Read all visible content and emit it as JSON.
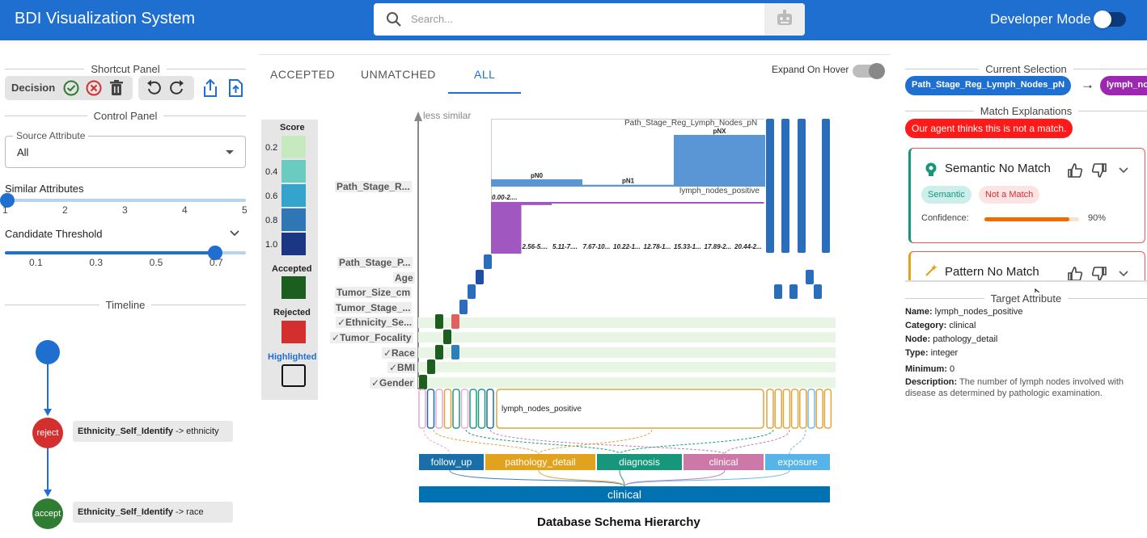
{
  "header": {
    "app_title": "BDI Visualization System",
    "search_placeholder": "Search...",
    "developer_mode_label": "Developer Mode"
  },
  "left": {
    "shortcut_panel": "Shortcut Panel",
    "decision_label": "Decision",
    "control_panel": "Control Panel",
    "source_attribute": {
      "label": "Source Attribute",
      "value": "All"
    },
    "similar_attributes": {
      "label": "Similar Attributes",
      "ticks": [
        "1",
        "2",
        "3",
        "4",
        "5"
      ],
      "value": 1
    },
    "candidate_threshold": {
      "label": "Candidate Threshold",
      "ticks": [
        "0.1",
        "0.3",
        "0.5",
        "0.7"
      ],
      "value": 0.7
    },
    "timeline_label": "Timeline",
    "timeline": [
      {
        "state": "reject",
        "text_bold": "Ethnicity_Self_Identify",
        "text_rest": " -> ethnicity"
      },
      {
        "state": "accept",
        "text_bold": "Ethnicity_Self_Identify",
        "text_rest": " -> race"
      }
    ]
  },
  "center": {
    "tabs": [
      "ACCEPTED",
      "UNMATCHED",
      "ALL"
    ],
    "active_tab": "ALL",
    "expand_on_hover": "Expand On Hover",
    "legend": {
      "score_title": "Score",
      "scores": [
        "0.2",
        "0.4",
        "0.6",
        "0.8",
        "1.0"
      ],
      "accepted": "Accepted",
      "rejected": "Rejected",
      "highlighted": "Highlighted"
    },
    "axis_label": "less similar",
    "source_attributes": [
      "Path_Stage_R...",
      "Path_Stage_P...",
      "Age",
      "Tumor_Size_cm",
      "Tumor_Stage_...",
      "✓Ethnicity_Se...",
      "✓Tumor_Focality",
      "✓Race",
      "✓BMI",
      "✓Gender"
    ],
    "top_histogram": {
      "title": "Path_Stage_Reg_Lymph_Nodes_pN",
      "categories": [
        "pN0",
        "pN1",
        "pNX"
      ],
      "values": [
        12,
        3,
        85
      ]
    },
    "bottom_histogram": {
      "title": "lymph_nodes_positive",
      "bins": [
        "0.00-2....",
        "2.56-5....",
        "5.11-7....",
        "7.67-10...",
        "10.22-1...",
        "12.78-1...",
        "15.33-1...",
        "17.89-2...",
        "20.44-2..."
      ],
      "values": [
        100,
        6,
        1,
        1,
        1,
        1,
        1,
        1,
        1
      ]
    },
    "expanded_target": "lymph_nodes_positive",
    "categories": [
      "follow_up",
      "pathology_detail",
      "diagnosis",
      "clinical",
      "exposure"
    ],
    "root": "clinical",
    "caption": "Database Schema Hierarchy"
  },
  "right": {
    "current_selection": "Current Selection",
    "source_pill": "Path_Stage_Reg_Lymph_Nodes_pN",
    "target_pill": "lymph_no",
    "match_explanations": "Match Explanations",
    "agent_notice": "Our agent thinks this is not a match.",
    "card1": {
      "title": "Semantic No Match",
      "tags": [
        "Semantic",
        "Not a Match"
      ],
      "confidence_label": "Confidence:",
      "confidence": "90%",
      "confidence_value": 0.9
    },
    "card2": {
      "title": "Pattern No Match"
    },
    "target_attribute": "Target Attribute",
    "details": [
      {
        "k": "Name:",
        "v": " lymph_nodes_positive"
      },
      {
        "k": "Category:",
        "v": " clinical"
      },
      {
        "k": "Node:",
        "v": " pathology_detail"
      },
      {
        "k": "Type:",
        "v": " integer"
      },
      {
        "k": "Minimum:",
        "v": " 0"
      },
      {
        "k": "Description:",
        "v": " The number of lymph nodes involved with disease as determined by pathologic examination."
      }
    ]
  }
}
